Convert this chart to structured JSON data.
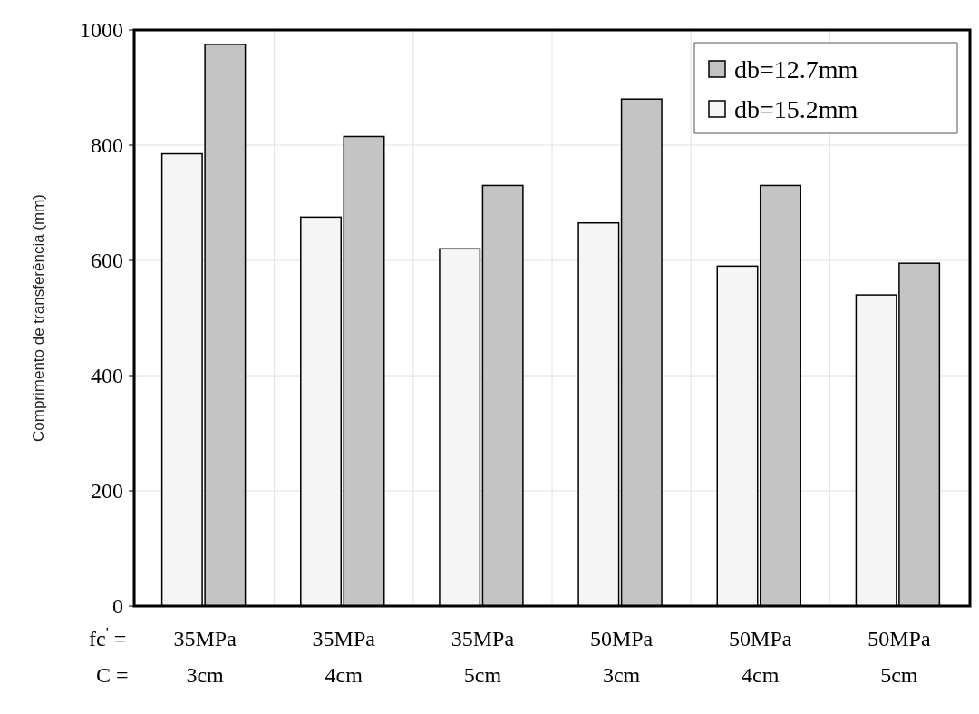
{
  "chart_data": {
    "type": "bar",
    "ylabel": "Comprimento de transferência (mm)",
    "categories": [
      "35MPa\n3cm",
      "35MPa\n4cm",
      "35MPa\n5cm",
      "50MPa\n3cm",
      "50MPa\n4cm",
      "50MPa\n5cm"
    ],
    "series": [
      {
        "name": "db=12.7mm",
        "color": "#c4c4c4",
        "values": [
          975,
          815,
          730,
          880,
          730,
          595
        ]
      },
      {
        "name": "db=15.2mm",
        "color": "#f5f5f5",
        "values": [
          785,
          675,
          620,
          665,
          590,
          540
        ]
      }
    ],
    "ylim": [
      0,
      1000
    ],
    "yticks": [
      0,
      200,
      400,
      600,
      800,
      1000
    ],
    "grid": true,
    "legend": "top right",
    "annotations": [
      "fc$^{'}$ =",
      "C ="
    ]
  }
}
